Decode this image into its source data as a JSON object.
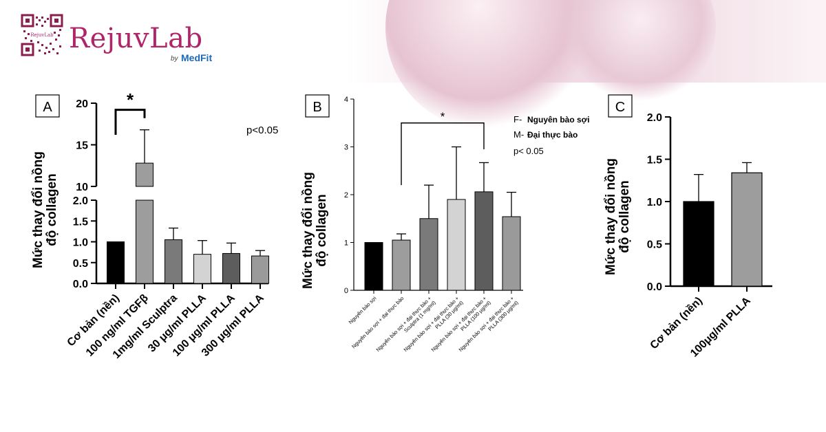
{
  "brand": {
    "name": "RejuvLab",
    "by": "by",
    "partner": "MedFit",
    "qr_text": "RejuvLab",
    "colors": {
      "brand": "#b0256a",
      "partner": "#1c67b8",
      "band": "#eed6e1"
    }
  },
  "chart_data": [
    {
      "type": "bar",
      "panel_label": "A",
      "ylabel_line1": "Mức thay đổi nồng",
      "ylabel_line2": "độ collagen",
      "broken_axis": true,
      "ylim_lower": [
        0,
        2.0
      ],
      "ylim_upper": [
        10,
        20
      ],
      "yticks_lower": [
        "0.0",
        "0.5",
        "1.0",
        "1.5",
        "2.0"
      ],
      "yticks_upper": [
        "10",
        "15",
        "20"
      ],
      "categories": [
        "Cơ bản (nền)",
        "100 ng/ml TGFβ",
        "1mg/ml Sculptra",
        "30 μg/ml PLLA",
        "100 μg/ml PLLA",
        "300 μg/ml PLLA"
      ],
      "values": [
        1.0,
        12.8,
        1.05,
        0.7,
        0.72,
        0.66
      ],
      "errors": [
        0.0,
        4.0,
        0.28,
        0.33,
        0.25,
        0.13
      ],
      "colors": [
        "#000000",
        "#9d9d9d",
        "#7a7a7a",
        "#d3d3d3",
        "#5d5d5d",
        "#9a9a9a"
      ],
      "significance": {
        "from": 0,
        "to": 1,
        "label": "*"
      },
      "annotation": "p<0.05"
    },
    {
      "type": "bar",
      "panel_label": "B",
      "ylabel_line1": "Mức thay đổi nồng",
      "ylabel_line2": "độ collagen",
      "ylim": [
        0,
        4
      ],
      "yticks": [
        "0",
        "1",
        "2",
        "3",
        "4"
      ],
      "categories": [
        [
          "Nguyên bào sợi"
        ],
        [
          "Nguyên bào sợi + đại thực bào"
        ],
        [
          "Nguyên bào sợi + đại thực bào +",
          "Sculptra (1 mg/ml)"
        ],
        [
          "Nguyên bào sợi + đại thực bào +",
          "PLLA (30 μg/ml)"
        ],
        [
          "Nguyên bào sợi + đại thực bào +",
          "PLLA (100 μg/ml)"
        ],
        [
          "Nguyên bào sợi + đại thực bào +",
          "PLLA (300 μg/ml)"
        ]
      ],
      "values": [
        1.0,
        1.05,
        1.5,
        1.9,
        2.06,
        1.54
      ],
      "errors": [
        0.0,
        0.13,
        0.7,
        1.1,
        0.61,
        0.51
      ],
      "colors": [
        "#000000",
        "#9d9d9d",
        "#7a7a7a",
        "#d3d3d3",
        "#5d5d5d",
        "#9a9a9a"
      ],
      "significance": {
        "from": 1,
        "to": 4,
        "label": "*"
      },
      "legend": [
        {
          "key": "F-",
          "text": "Nguyên bào sợi"
        },
        {
          "key": "M-",
          "text": "Đại thực bào"
        }
      ],
      "annotation": "p< 0.05"
    },
    {
      "type": "bar",
      "panel_label": "C",
      "ylabel_line1": "Mức thay đổi nồng",
      "ylabel_line2": "độ collagen",
      "ylim": [
        0,
        2.0
      ],
      "yticks": [
        "0.0",
        "0.5",
        "1.0",
        "1.5",
        "2.0"
      ],
      "categories": [
        "Cơ bản (nền)",
        "100μg/ml PLLA"
      ],
      "values": [
        1.0,
        1.34
      ],
      "errors": [
        0.32,
        0.12
      ],
      "colors": [
        "#000000",
        "#9d9d9d"
      ]
    }
  ]
}
